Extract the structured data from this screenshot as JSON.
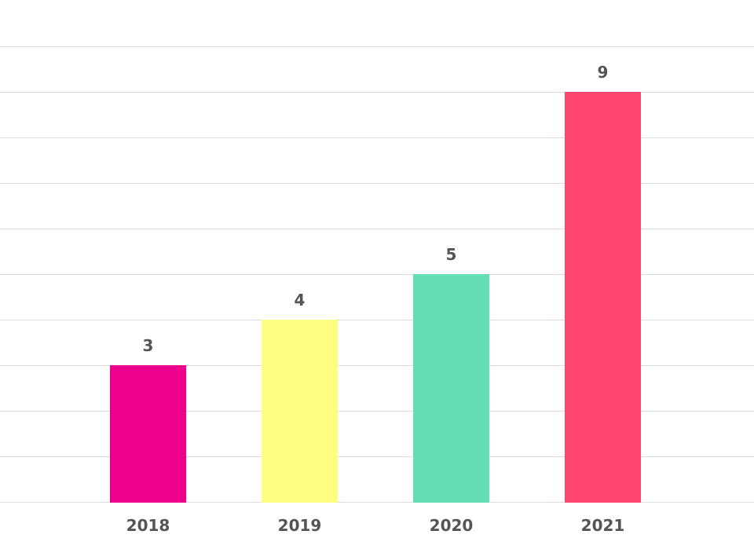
{
  "chart_data": {
    "type": "bar",
    "categories": [
      "2018",
      "2019",
      "2020",
      "2021"
    ],
    "values": [
      3,
      4,
      5,
      9
    ],
    "colors": [
      "#ec008c",
      "#feff80",
      "#66deb4",
      "#ff4670"
    ],
    "title": "",
    "xlabel": "",
    "ylabel": "",
    "ylim": [
      0,
      10
    ],
    "grid": true,
    "legend": "none",
    "data_labels": true
  }
}
